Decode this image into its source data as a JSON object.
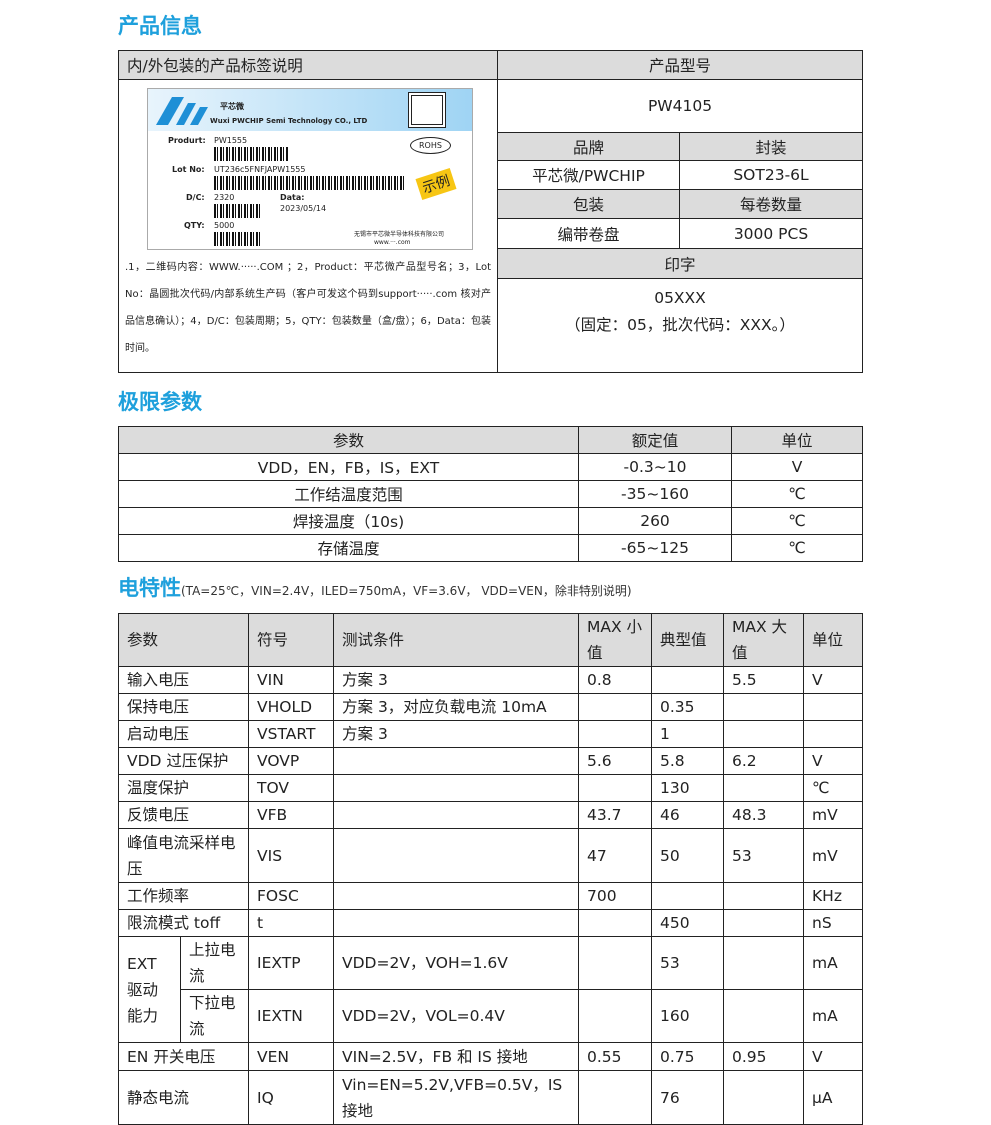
{
  "sections": {
    "product_info": "产品信息",
    "limits": "极限参数",
    "electrical": "电特性",
    "electrical_note": "(TA=25℃，VIN=2.4V，ILED=750mA，VF=3.6V，  VDD=VEN，除非特别说明)"
  },
  "product": {
    "label_header": "内/外包装的产品标签说明",
    "model_header": "产品型号",
    "model": "PW4105",
    "brand_header": "品牌",
    "package_header": "封装",
    "brand": "平芯微/PWCHIP",
    "package": "SOT23-6L",
    "packing_header": "包装",
    "qty_header": "每卷数量",
    "packing": "编带卷盘",
    "qty": "3000 PCS",
    "marking_header": "印字",
    "marking": "05XXX",
    "marking_note": "（固定：05，批次代码：XXX。）",
    "label": {
      "brand_cn": "平芯微",
      "company": "Wuxi PWCHIP Semi Technology CO., LTD",
      "product_k": "Produrt:",
      "product_v": "PW1555",
      "lot_k": "Lot No:",
      "lot_v": "UT236c5FNFJAPW1555",
      "dc_k": "D/C:",
      "dc_v": "2320",
      "date_k": "Data:",
      "date_v": "2023/05/14",
      "qty_k": "QTY:",
      "qty_v": "5000",
      "rohs": "ROHS",
      "sample": "示例",
      "company_cn": "无锡市平芯微半导体科技有限公司",
      "web": "www.···.com"
    },
    "notes": ".1，二维码内容：WWW.·····.COM ；2，Product：平芯微产品型号名；3，Lot No：晶圆批次代码/内部系统生产码（客户可发这个码到support·····.com 核对产品信息确认）；4，D/C：包装周期；5，QTY：包装数量（盒/盘）；6，Data：包装时间。"
  },
  "limits": {
    "headers": [
      "参数",
      "额定值",
      "单位"
    ],
    "rows": [
      [
        "VDD，EN，FB，IS，EXT",
        "-0.3~10",
        "V"
      ],
      [
        "工作结温度范围",
        "-35~160",
        "℃"
      ],
      [
        "焊接温度（10s)",
        "260",
        "℃"
      ],
      [
        "存储温度",
        "-65~125",
        "℃"
      ]
    ]
  },
  "elec": {
    "headers": [
      "参数",
      "符号",
      "测试条件",
      "MAX 小值",
      "典型值",
      "MAX 大值",
      "单位"
    ],
    "rows": [
      [
        "输入电压",
        "VIN",
        "方案 3",
        "0.8",
        "",
        "5.5",
        "V"
      ],
      [
        "保持电压",
        "VHOLD",
        "方案 3，对应负载电流  10mA",
        "",
        "0.35",
        "",
        ""
      ],
      [
        "启动电压",
        "VSTART",
        "方案  3",
        "",
        "1",
        "",
        ""
      ],
      [
        "VDD 过压保护",
        "VOVP",
        "",
        "5.6",
        "5.8",
        "6.2",
        "V"
      ],
      [
        "温度保护",
        "TOV",
        "",
        "",
        "130",
        "",
        "℃"
      ],
      [
        "反馈电压",
        "VFB",
        "",
        "43.7",
        "46",
        "48.3",
        "mV"
      ],
      [
        "峰值电流采样电压",
        "VIS",
        "",
        "47",
        "50",
        "53",
        "mV"
      ],
      [
        "工作频率",
        "FOSC",
        "",
        "700",
        "",
        "",
        "KHz"
      ],
      [
        "限流模式  toff",
        "t",
        "",
        "",
        "450",
        "",
        "nS"
      ]
    ],
    "ext_group": "EXT 驱动能力",
    "ext_rows": [
      [
        "上拉电流",
        "IEXTP",
        "VDD=2V，VOH=1.6V",
        "",
        "53",
        "",
        "mA"
      ],
      [
        "下拉电流",
        "IEXTN",
        "VDD=2V，VOL=0.4V",
        "",
        "160",
        "",
        "mA"
      ]
    ],
    "tail_rows": [
      [
        "EN 开关电压",
        "VEN",
        "VIN=2.5V，FB 和 IS 接地",
        "0.55",
        "0.75",
        "0.95",
        "V"
      ],
      [
        "静态电流",
        "IQ",
        "Vin=EN=5.2V,VFB=0.5V，IS 接地",
        "",
        "76",
        "",
        "μA"
      ]
    ]
  }
}
